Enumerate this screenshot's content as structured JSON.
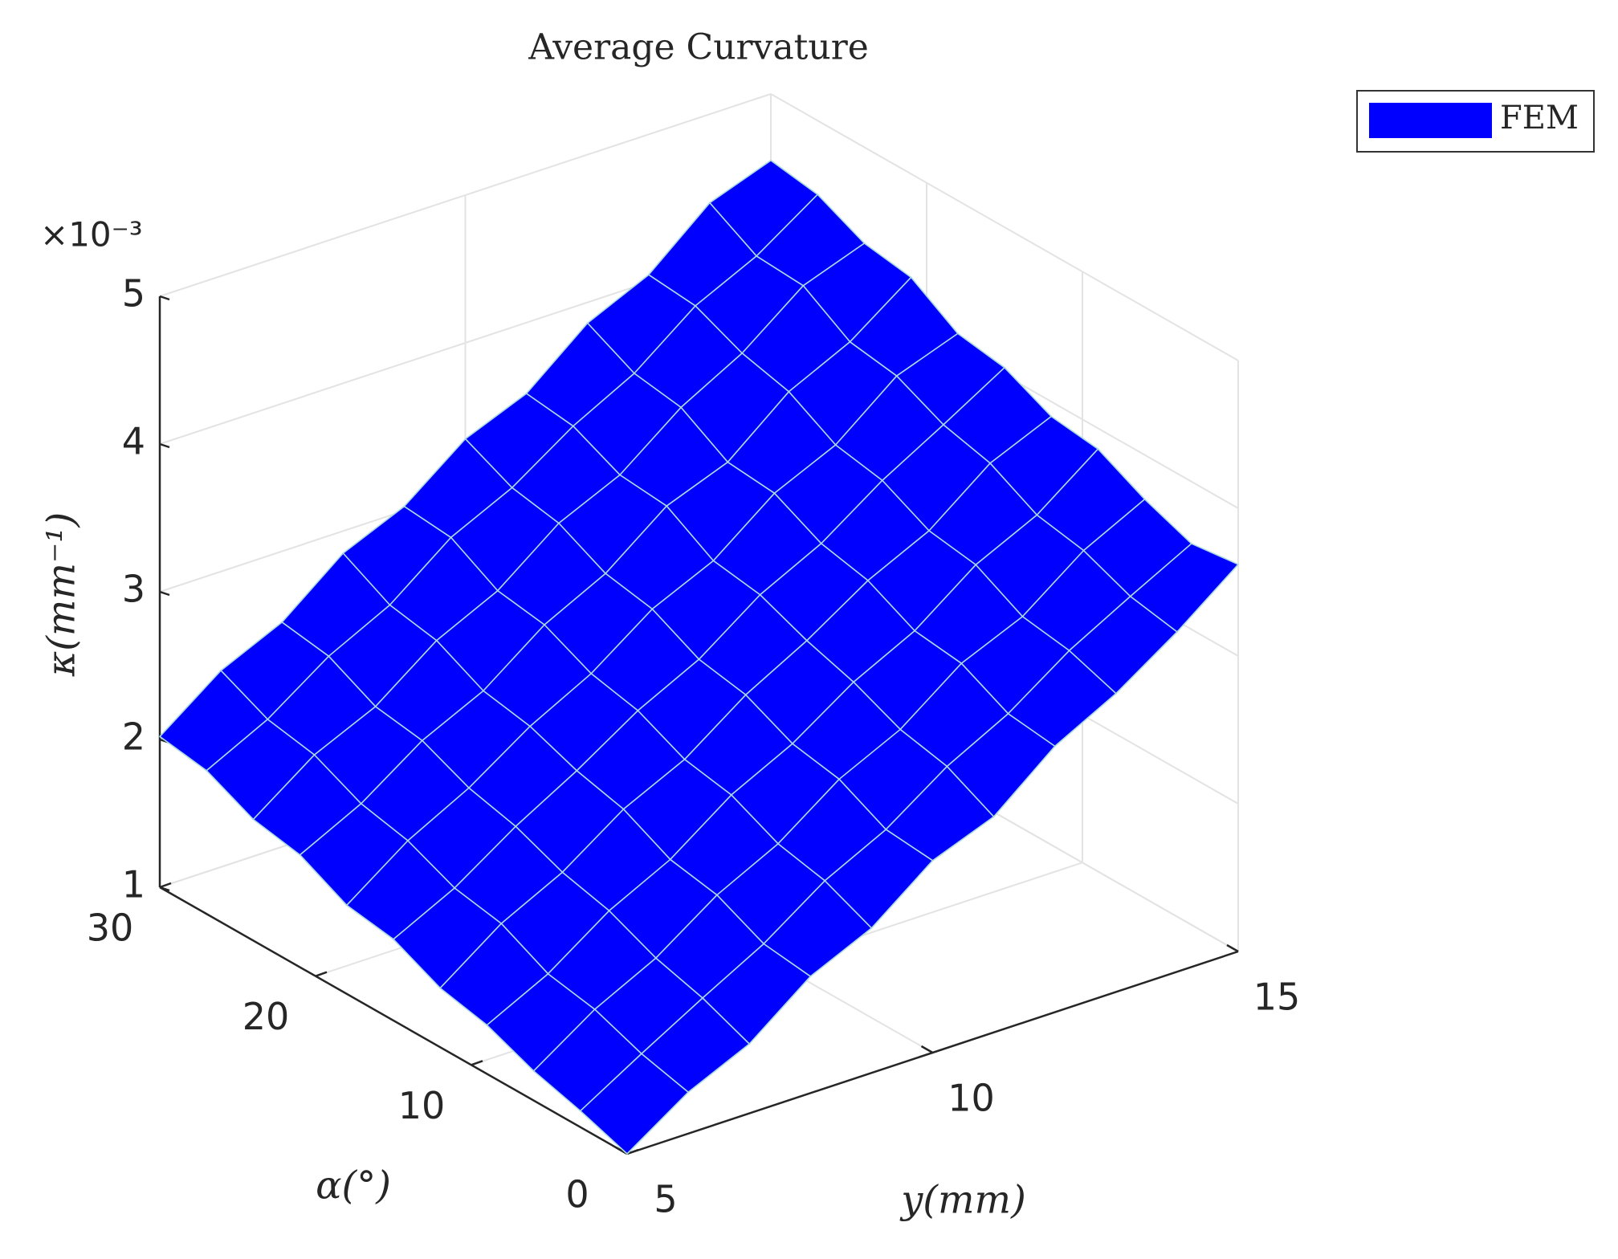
{
  "chart_data": {
    "type": "surface",
    "title": "Average Curvature",
    "x_label": "y(mm)",
    "y_label": "α(°)",
    "z_label": "κ(mm⁻¹)",
    "z_multiplier": "×10⁻³",
    "x": [
      5,
      6,
      7,
      8,
      9,
      10,
      11,
      12,
      13,
      14,
      15
    ],
    "y": [
      0,
      3,
      6,
      9,
      12,
      15,
      18,
      21,
      24,
      27,
      30
    ],
    "series": [
      {
        "name": "FEM",
        "color": "#0000ff",
        "edgecolor": "#a8d8e0",
        "values": [
          [
            1.0,
            1.28,
            1.47,
            1.79,
            1.98,
            2.3,
            2.46,
            2.8,
            3.02,
            3.3,
            3.62
          ],
          [
            1.11,
            1.36,
            1.6,
            1.83,
            2.12,
            2.33,
            2.62,
            2.84,
            3.13,
            3.36,
            3.58
          ],
          [
            1.2,
            1.48,
            1.69,
            1.98,
            2.19,
            2.49,
            2.69,
            3.0,
            3.18,
            3.49,
            3.7
          ],
          [
            1.33,
            1.54,
            1.83,
            2.04,
            2.34,
            2.55,
            2.83,
            3.04,
            3.35,
            3.55,
            3.86
          ],
          [
            1.4,
            1.7,
            1.91,
            2.2,
            2.4,
            2.7,
            2.93,
            3.2,
            3.4,
            3.72,
            3.9
          ],
          [
            1.55,
            1.76,
            2.04,
            2.28,
            2.55,
            2.76,
            3.06,
            3.27,
            3.56,
            3.8,
            4.05
          ],
          [
            1.6,
            1.9,
            2.12,
            2.4,
            2.62,
            2.92,
            3.11,
            3.43,
            3.62,
            3.95,
            4.1
          ],
          [
            1.76,
            1.97,
            2.26,
            2.46,
            2.77,
            2.98,
            3.3,
            3.46,
            3.8,
            4.0,
            4.3
          ],
          [
            1.82,
            2.12,
            2.31,
            2.62,
            2.82,
            3.14,
            3.33,
            3.65,
            3.88,
            4.2,
            4.35
          ],
          [
            1.97,
            2.18,
            2.47,
            2.68,
            3.0,
            3.2,
            3.48,
            3.7,
            4.02,
            4.22,
            4.5
          ],
          [
            2.02,
            2.33,
            2.52,
            2.85,
            3.03,
            3.35,
            3.52,
            3.86,
            4.05,
            4.4,
            4.55
          ]
        ]
      }
    ],
    "xlim": [
      5,
      15
    ],
    "xticks": [
      5,
      10,
      15
    ],
    "ylim": [
      0,
      30
    ],
    "yticks": [
      0,
      10,
      20,
      30
    ],
    "zlim": [
      1,
      5
    ],
    "zticks": [
      1,
      2,
      3,
      4,
      5
    ],
    "grid": true,
    "legend": "upper right"
  }
}
